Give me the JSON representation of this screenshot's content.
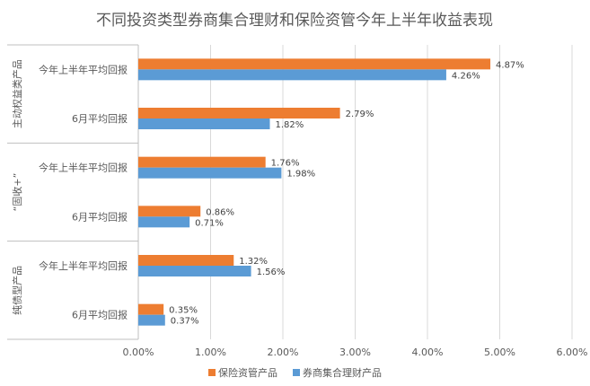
{
  "chart_data": {
    "type": "bar",
    "orientation": "horizontal",
    "title": "不同投资类型券商集合理财和保险资管今年上半年收益表现",
    "groups": [
      {
        "label": "主动权益类产品",
        "categories": [
          "今年上半年平均回报",
          "6月平均回报"
        ]
      },
      {
        "label": "“固收+”",
        "categories": [
          "今年上半年平均回报",
          "6月平均回报"
        ]
      },
      {
        "label": "纯债型产品",
        "categories": [
          "今年上半年平均回报",
          "6月平均回报"
        ]
      }
    ],
    "series": [
      {
        "name": "保险资管产品",
        "color": "#ED7D31",
        "values": [
          4.87,
          2.79,
          1.76,
          0.86,
          1.32,
          0.35
        ]
      },
      {
        "name": "券商集合理财产品",
        "color": "#5B9BD5",
        "values": [
          4.26,
          1.82,
          1.98,
          0.71,
          1.56,
          0.37
        ]
      }
    ],
    "xlim": [
      0,
      6
    ],
    "x_ticks": [
      "0.00%",
      "1.00%",
      "2.00%",
      "3.00%",
      "4.00%",
      "5.00%",
      "6.00%"
    ],
    "value_suffix": "%",
    "grid": true,
    "legend_position": "bottom"
  }
}
